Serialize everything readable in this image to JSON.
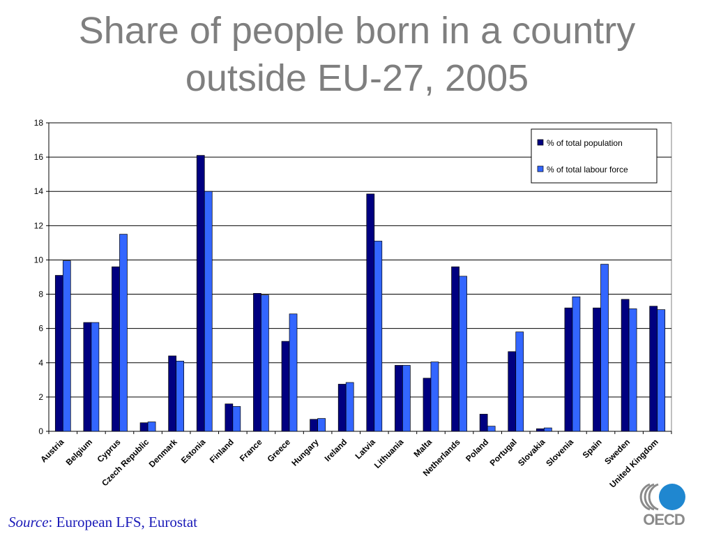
{
  "title": {
    "line1": "Share of people born in a country",
    "line2": "outside EU-27, 2005"
  },
  "source": {
    "label": "Source",
    "text": ": European LFS, Eurostat"
  },
  "logo": {
    "text": "OECD",
    "icon": "oecd-logo"
  },
  "colors": {
    "title": "#7f7f7f",
    "series1": "#000080",
    "series2": "#3366ff",
    "source": "#1a1ab8",
    "logo_circle": "#1f87d0",
    "logo_grey": "#8a8a8a"
  },
  "chart_data": {
    "type": "bar",
    "title": "",
    "xlabel": "",
    "ylabel": "",
    "ylim": [
      0,
      18
    ],
    "yticks": [
      0,
      2,
      4,
      6,
      8,
      10,
      12,
      14,
      16,
      18
    ],
    "grid": true,
    "legend_position": "top-right",
    "categories": [
      "Austria",
      "Belgium",
      "Cyprus",
      "Czech Republic",
      "Denmark",
      "Estonia",
      "Finland",
      "France",
      "Greece",
      "Hungary",
      "Ireland",
      "Latvia",
      "Lithuania",
      "Malta",
      "Netherlands",
      "Poland",
      "Portugal",
      "Slovakia",
      "Slovenia",
      "Spain",
      "Sweden",
      "United Kingdom"
    ],
    "series": [
      {
        "name": "% of total population",
        "color": "#000080",
        "values": [
          9.1,
          6.35,
          9.6,
          0.5,
          4.4,
          16.1,
          1.6,
          8.05,
          5.25,
          0.7,
          2.75,
          13.85,
          3.85,
          3.1,
          9.6,
          1.0,
          4.65,
          0.15,
          7.2,
          7.2,
          7.7,
          7.3
        ]
      },
      {
        "name": "% of total labour force",
        "color": "#3366ff",
        "values": [
          9.95,
          6.35,
          11.5,
          0.55,
          4.1,
          14.0,
          1.45,
          7.95,
          6.85,
          0.75,
          2.85,
          11.1,
          3.85,
          4.05,
          9.05,
          0.3,
          5.8,
          0.2,
          7.85,
          9.75,
          7.15,
          7.1
        ]
      }
    ]
  }
}
